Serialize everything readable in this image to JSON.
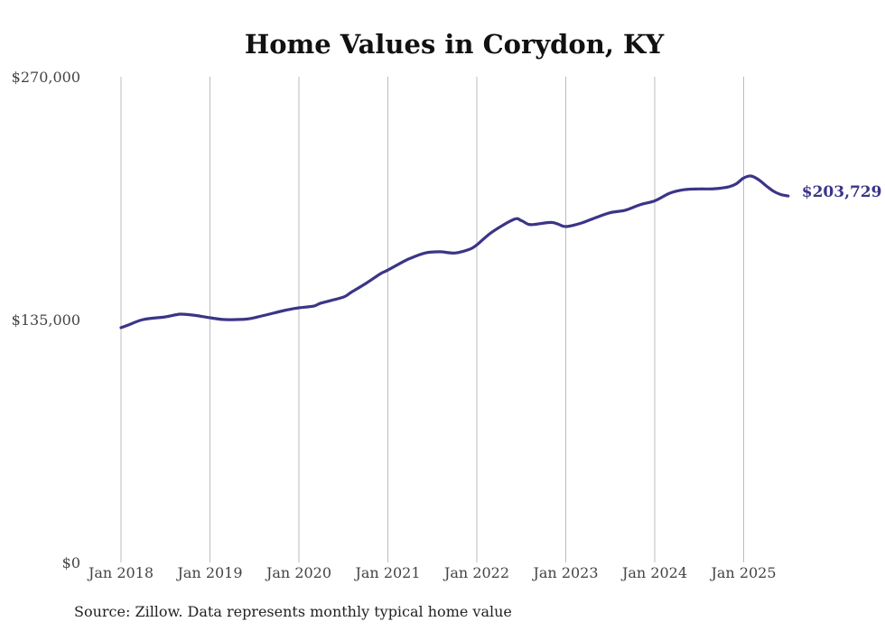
{
  "chart_data": {
    "type": "line",
    "title": "Home Values in Corydon, KY",
    "source_note": "Source: Zillow. Data represents monthly typical home value",
    "ylim": [
      0,
      270000
    ],
    "y_ticks": [
      "$0",
      "$135,000",
      "$270,000"
    ],
    "y_tick_values": [
      0,
      135000,
      270000
    ],
    "x_ticks": [
      "Jan 2018",
      "Jan 2019",
      "Jan 2020",
      "Jan 2021",
      "Jan 2022",
      "Jan 2023",
      "Jan 2024",
      "Jan 2025"
    ],
    "x_tick_values": [
      2018.0,
      2019.0,
      2020.0,
      2021.0,
      2022.0,
      2023.0,
      2024.0,
      2025.0
    ],
    "grid": "vertical",
    "line_color": "#3b3587",
    "end_label": "$203,729",
    "series": [
      {
        "x": [
          2018.0,
          2018.083,
          2018.25,
          2018.5,
          2018.667,
          2018.833,
          2019.0,
          2019.167,
          2019.417,
          2019.583,
          2019.833,
          2020.0,
          2020.167,
          2020.25,
          2020.5,
          2020.583,
          2020.75,
          2020.917,
          2021.0,
          2021.167,
          2021.25,
          2021.417,
          2021.583,
          2021.75,
          2021.917,
          2022.0,
          2022.167,
          2022.417,
          2022.5,
          2022.583,
          2022.667,
          2022.833,
          2022.917,
          2023.0,
          2023.167,
          2023.333,
          2023.5,
          2023.667,
          2023.833,
          2024.0,
          2024.167,
          2024.333,
          2024.5,
          2024.667,
          2024.833,
          2024.917,
          2025.0,
          2025.083,
          2025.167,
          2025.25,
          2025.333,
          2025.417,
          2025.5
        ],
        "y": [
          130500,
          132000,
          135000,
          136500,
          138000,
          137300,
          136000,
          135000,
          135300,
          137000,
          140000,
          141500,
          142500,
          144200,
          147500,
          150000,
          155000,
          160500,
          162500,
          167000,
          169000,
          172000,
          172700,
          172000,
          174000,
          176500,
          183500,
          190700,
          190000,
          187900,
          188000,
          189000,
          188000,
          186700,
          188500,
          191600,
          194400,
          195800,
          198800,
          201000,
          205200,
          207200,
          207600,
          207700,
          208800,
          210500,
          213700,
          214800,
          212800,
          209500,
          206400,
          204500,
          203729
        ]
      }
    ]
  }
}
